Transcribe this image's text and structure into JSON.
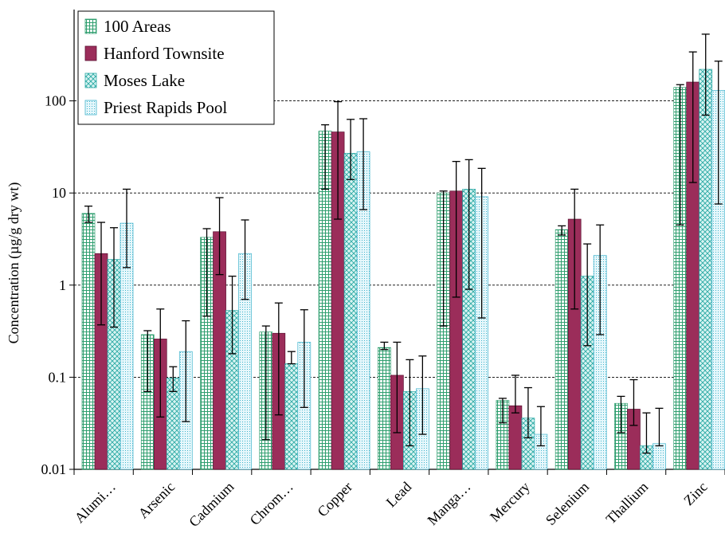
{
  "chart_data": {
    "type": "bar",
    "title": "",
    "xlabel": "",
    "ylabel": "Concentration (µg/g dry wt)",
    "yscale": "log",
    "ylim": [
      0.01,
      650
    ],
    "yticks": [
      0.01,
      0.1,
      1,
      10,
      100
    ],
    "ytick_labels": [
      "0.01",
      "0.1",
      "1",
      "10",
      "100"
    ],
    "grid": "horizontal dashed",
    "legend_position": "top-left",
    "categories": [
      "Alumi…",
      "Arsenic",
      "Cadmium",
      "Chrom…",
      "Copper",
      "Lead",
      "Manga…",
      "Mercury",
      "Selenium",
      "Thallium",
      "Zinc"
    ],
    "series": [
      {
        "name": "100 Areas",
        "pattern": "grid",
        "color": "#7fd6b4",
        "values": [
          6.0,
          0.29,
          3.3,
          0.31,
          47,
          0.21,
          10,
          0.056,
          4.0,
          0.052,
          140
        ],
        "err_low": [
          4.8,
          0.07,
          0.46,
          0.021,
          11,
          0.2,
          0.36,
          0.032,
          3.5,
          0.025,
          4.5
        ],
        "err_high": [
          7.2,
          0.32,
          4.1,
          0.36,
          55,
          0.24,
          10.5,
          0.059,
          4.4,
          0.062,
          150
        ]
      },
      {
        "name": "Hanford Townsite",
        "pattern": "solid",
        "color": "#9b2d5a",
        "values": [
          2.2,
          0.26,
          3.8,
          0.3,
          46,
          0.105,
          10.5,
          0.049,
          5.2,
          0.045,
          160
        ],
        "err_low": [
          0.37,
          0.037,
          1.3,
          0.039,
          5.2,
          0.025,
          0.74,
          0.041,
          0.55,
          0.03,
          13
        ],
        "err_high": [
          4.8,
          0.55,
          8.9,
          0.64,
          98,
          0.24,
          22,
          0.105,
          11,
          0.094,
          340
        ]
      },
      {
        "name": "Moses Lake",
        "pattern": "crosshatch",
        "color": "#5bc6c2",
        "values": [
          1.9,
          0.098,
          0.53,
          0.14,
          27,
          0.07,
          11,
          0.036,
          1.25,
          0.018,
          220
        ],
        "err_low": [
          0.35,
          0.07,
          0.18,
          0.14,
          14,
          0.018,
          0.9,
          0.022,
          0.22,
          0.015,
          70
        ],
        "err_high": [
          4.2,
          0.13,
          1.25,
          0.19,
          63,
          0.155,
          23,
          0.077,
          2.8,
          0.041,
          530
        ]
      },
      {
        "name": "Priest Rapids Pool",
        "pattern": "dots",
        "color": "#8fd9e8",
        "values": [
          4.7,
          0.19,
          2.2,
          0.24,
          28,
          0.075,
          9.1,
          0.024,
          2.1,
          0.019,
          130
        ],
        "err_low": [
          1.55,
          0.033,
          0.7,
          0.047,
          6.6,
          0.024,
          0.44,
          0.018,
          0.29,
          0.018,
          7.6
        ],
        "err_high": [
          11,
          0.41,
          5.1,
          0.54,
          64,
          0.17,
          18.5,
          0.048,
          4.5,
          0.046,
          270
        ]
      }
    ]
  }
}
